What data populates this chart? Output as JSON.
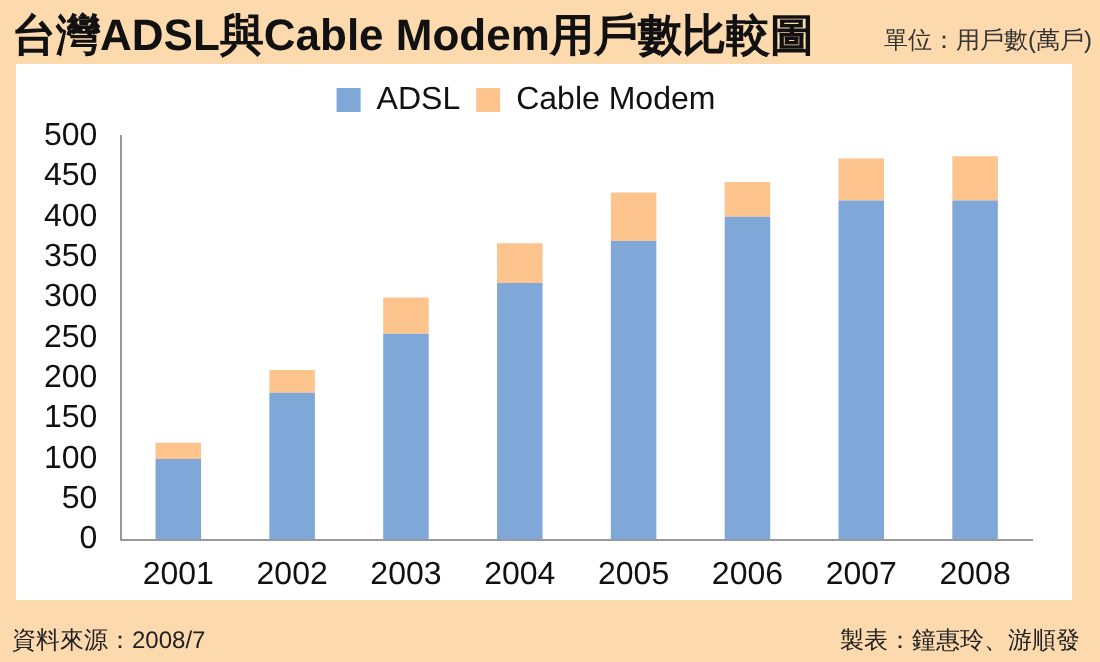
{
  "chart_data": {
    "type": "bar",
    "title": "台灣ADSL與Cable Modem用戶數比較圖",
    "subtitle": "單位：用戶數(萬戶)",
    "categories": [
      "2001",
      "2002",
      "2003",
      "2004",
      "2005",
      "2006",
      "2007",
      "2008"
    ],
    "series": [
      {
        "name": "ADSL",
        "color": "#7fa7d8",
        "values": [
          100,
          182,
          255,
          318,
          370,
          400,
          420,
          420
        ]
      },
      {
        "name": "Cable Modem",
        "color": "#fdc48e",
        "values": [
          20,
          28,
          45,
          49,
          60,
          43,
          52,
          55
        ]
      }
    ],
    "stacked": true,
    "ylim": [
      0,
      500
    ],
    "yticks": [
      0,
      50,
      100,
      150,
      200,
      250,
      300,
      350,
      400,
      450,
      500
    ],
    "grid": false,
    "legend": "top",
    "annotations": [
      "資料來源：2008/7",
      "製表：鐘惠玲、游順發"
    ]
  }
}
